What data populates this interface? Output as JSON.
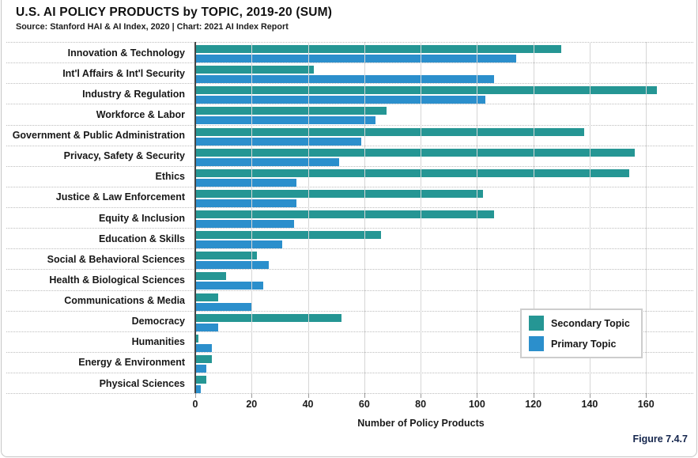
{
  "header": {
    "title": "U.S. AI POLICY PRODUCTS by TOPIC, 2019-20 (SUM)",
    "source": "Source: Stanford HAI & AI Index, 2020 | Chart: 2021 AI Index Report"
  },
  "figure_label": "Figure 7.4.7",
  "legend": [
    {
      "label": "Secondary Topic",
      "color": "#259694"
    },
    {
      "label": "Primary Topic",
      "color": "#2b8fcc"
    }
  ],
  "chart_data": {
    "type": "bar",
    "orientation": "horizontal",
    "title": "U.S. AI POLICY PRODUCTS by TOPIC, 2019-20 (SUM)",
    "xlabel": "Number of Policy Products",
    "xlim": [
      0,
      176
    ],
    "xticks": [
      0,
      20,
      40,
      60,
      80,
      100,
      120,
      140,
      160
    ],
    "grid": "vertical",
    "legend_position": "inside-right",
    "categories": [
      "Innovation & Technology",
      "Int'l Affairs & Int'l Security",
      "Industry & Regulation",
      "Workforce & Labor",
      "Government & Public Administration",
      "Privacy, Safety & Security",
      "Ethics",
      "Justice & Law Enforcement",
      "Equity & Inclusion",
      "Education & Skills",
      "Social & Behavioral Sciences",
      "Health & Biological Sciences",
      "Communications & Media",
      "Democracy",
      "Humanities",
      "Energy & Environment",
      "Physical Sciences"
    ],
    "series": [
      {
        "name": "Secondary Topic",
        "color": "#259694",
        "values": [
          130,
          42,
          164,
          68,
          138,
          156,
          154,
          102,
          106,
          66,
          22,
          11,
          8,
          52,
          1,
          6,
          4
        ]
      },
      {
        "name": "Primary Topic",
        "color": "#2b8fcc",
        "values": [
          114,
          106,
          103,
          64,
          59,
          51,
          36,
          36,
          35,
          31,
          26,
          24,
          20,
          8,
          6,
          4,
          2
        ]
      }
    ]
  }
}
